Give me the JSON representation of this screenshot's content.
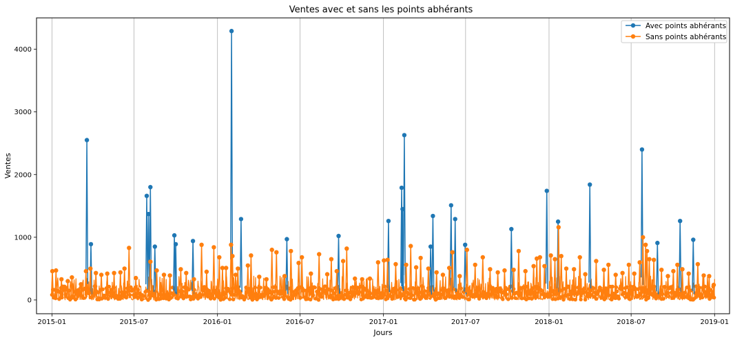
{
  "chart_data": {
    "type": "line",
    "title": "Ventes avec et sans les points abhérants",
    "xlabel": "Jours",
    "ylabel": "Ventes",
    "x_range": [
      "2014-11-28",
      "2019-02-03"
    ],
    "ylim": [
      -220,
      4500
    ],
    "x_ticks": [
      "2015-01",
      "2015-07",
      "2016-01",
      "2016-07",
      "2017-01",
      "2017-07",
      "2018-01",
      "2018-07",
      "2019-01"
    ],
    "y_ticks": [
      0,
      1000,
      2000,
      3000,
      4000
    ],
    "grid": "vertical",
    "legend_position": "top-right",
    "series": [
      {
        "name": "Avec points abhérants",
        "color": "#1f77b4",
        "marker": "circle",
        "points": [
          [
            "2015-03-19",
            2550
          ],
          [
            "2015-03-28",
            890
          ],
          [
            "2015-07-29",
            1660
          ],
          [
            "2015-08-02",
            1370
          ],
          [
            "2015-08-06",
            1800
          ],
          [
            "2015-08-16",
            850
          ],
          [
            "2015-09-28",
            1030
          ],
          [
            "2015-10-01",
            890
          ],
          [
            "2015-11-08",
            940
          ],
          [
            "2016-02-01",
            4290
          ],
          [
            "2016-02-22",
            1290
          ],
          [
            "2016-06-02",
            970
          ],
          [
            "2016-09-24",
            1020
          ],
          [
            "2017-01-12",
            1260
          ],
          [
            "2017-02-10",
            1790
          ],
          [
            "2017-02-12",
            1450
          ],
          [
            "2017-02-16",
            2630
          ],
          [
            "2017-04-15",
            850
          ],
          [
            "2017-04-20",
            1340
          ],
          [
            "2017-05-30",
            1510
          ],
          [
            "2017-06-08",
            1290
          ],
          [
            "2017-06-30",
            880
          ],
          [
            "2017-10-10",
            1130
          ],
          [
            "2017-12-27",
            1740
          ],
          [
            "2018-01-21",
            1250
          ],
          [
            "2018-04-01",
            1840
          ],
          [
            "2018-07-25",
            2400
          ],
          [
            "2018-08-28",
            910
          ],
          [
            "2018-10-17",
            1260
          ],
          [
            "2018-11-15",
            960
          ]
        ]
      },
      {
        "name": "Sans points abhérants",
        "color": "#ff7f0e",
        "marker": "circle",
        "points": [
          [
            "2015-01-02",
            460
          ],
          [
            "2015-01-10",
            470
          ],
          [
            "2015-01-22",
            330
          ],
          [
            "2015-02-05",
            300
          ],
          [
            "2015-02-14",
            360
          ],
          [
            "2015-03-06",
            250
          ],
          [
            "2015-03-17",
            460
          ],
          [
            "2015-03-27",
            500
          ],
          [
            "2015-04-08",
            430
          ],
          [
            "2015-04-20",
            400
          ],
          [
            "2015-05-03",
            420
          ],
          [
            "2015-05-18",
            430
          ],
          [
            "2015-06-01",
            440
          ],
          [
            "2015-06-10",
            500
          ],
          [
            "2015-06-20",
            830
          ],
          [
            "2015-07-05",
            350
          ],
          [
            "2015-08-06",
            610
          ],
          [
            "2015-08-20",
            470
          ],
          [
            "2015-09-05",
            400
          ],
          [
            "2015-09-18",
            390
          ],
          [
            "2015-10-12",
            490
          ],
          [
            "2015-10-24",
            430
          ],
          [
            "2015-11-10",
            330
          ],
          [
            "2015-11-27",
            880
          ],
          [
            "2015-12-08",
            450
          ],
          [
            "2015-12-24",
            840
          ],
          [
            "2016-01-05",
            680
          ],
          [
            "2016-01-12",
            510
          ],
          [
            "2016-01-20",
            510
          ],
          [
            "2016-01-31",
            880
          ],
          [
            "2016-02-03",
            700
          ],
          [
            "2016-02-10",
            400
          ],
          [
            "2016-02-15",
            500
          ],
          [
            "2016-03-08",
            550
          ],
          [
            "2016-03-15",
            710
          ],
          [
            "2016-04-02",
            370
          ],
          [
            "2016-04-18",
            330
          ],
          [
            "2016-04-30",
            800
          ],
          [
            "2016-05-10",
            760
          ],
          [
            "2016-05-28",
            380
          ],
          [
            "2016-06-11",
            780
          ],
          [
            "2016-06-28",
            590
          ],
          [
            "2016-07-05",
            680
          ],
          [
            "2016-07-25",
            420
          ],
          [
            "2016-08-12",
            730
          ],
          [
            "2016-08-30",
            410
          ],
          [
            "2016-09-08",
            650
          ],
          [
            "2016-09-20",
            460
          ],
          [
            "2016-10-04",
            620
          ],
          [
            "2016-10-12",
            820
          ],
          [
            "2016-10-30",
            340
          ],
          [
            "2016-11-15",
            330
          ],
          [
            "2016-12-02",
            340
          ],
          [
            "2016-12-20",
            600
          ],
          [
            "2017-01-02",
            630
          ],
          [
            "2017-01-10",
            640
          ],
          [
            "2017-01-28",
            570
          ],
          [
            "2017-02-20",
            560
          ],
          [
            "2017-03-02",
            860
          ],
          [
            "2017-03-14",
            520
          ],
          [
            "2017-03-24",
            670
          ],
          [
            "2017-04-10",
            500
          ],
          [
            "2017-04-28",
            440
          ],
          [
            "2017-05-12",
            400
          ],
          [
            "2017-05-26",
            510
          ],
          [
            "2017-06-02",
            760
          ],
          [
            "2017-06-18",
            380
          ],
          [
            "2017-07-04",
            800
          ],
          [
            "2017-07-22",
            560
          ],
          [
            "2017-08-08",
            680
          ],
          [
            "2017-08-24",
            490
          ],
          [
            "2017-09-10",
            440
          ],
          [
            "2017-09-25",
            470
          ],
          [
            "2017-10-15",
            480
          ],
          [
            "2017-10-26",
            780
          ],
          [
            "2017-11-10",
            460
          ],
          [
            "2017-11-28",
            540
          ],
          [
            "2017-12-05",
            660
          ],
          [
            "2017-12-12",
            680
          ],
          [
            "2017-12-22",
            540
          ],
          [
            "2018-01-05",
            710
          ],
          [
            "2018-01-14",
            650
          ],
          [
            "2018-01-22",
            1160
          ],
          [
            "2018-01-28",
            700
          ],
          [
            "2018-02-08",
            500
          ],
          [
            "2018-02-25",
            490
          ],
          [
            "2018-03-10",
            680
          ],
          [
            "2018-03-22",
            410
          ],
          [
            "2018-04-15",
            620
          ],
          [
            "2018-05-02",
            480
          ],
          [
            "2018-05-12",
            560
          ],
          [
            "2018-05-28",
            400
          ],
          [
            "2018-06-12",
            430
          ],
          [
            "2018-06-26",
            560
          ],
          [
            "2018-07-08",
            420
          ],
          [
            "2018-07-20",
            600
          ],
          [
            "2018-07-27",
            1000
          ],
          [
            "2018-08-02",
            880
          ],
          [
            "2018-08-05",
            780
          ],
          [
            "2018-08-10",
            650
          ],
          [
            "2018-08-20",
            640
          ],
          [
            "2018-09-06",
            480
          ],
          [
            "2018-09-20",
            380
          ],
          [
            "2018-10-02",
            460
          ],
          [
            "2018-10-11",
            560
          ],
          [
            "2018-10-22",
            490
          ],
          [
            "2018-11-05",
            420
          ],
          [
            "2018-11-25",
            570
          ],
          [
            "2018-12-08",
            390
          ],
          [
            "2018-12-20",
            380
          ],
          [
            "2018-12-30",
            240
          ]
        ]
      }
    ]
  }
}
